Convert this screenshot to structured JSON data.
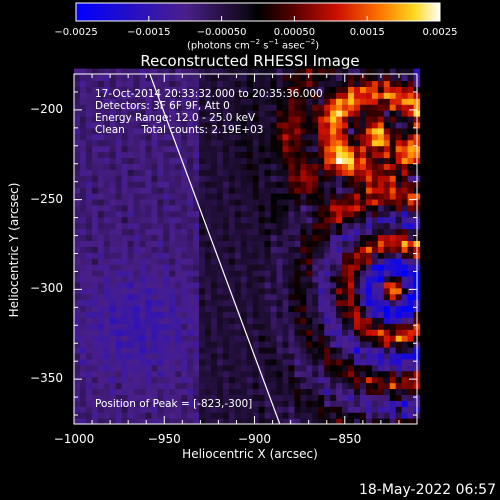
{
  "colorbar": {
    "tick_labels": [
      "−0.0025",
      "−0.0015",
      "−0.00050",
      "0.00050",
      "0.0015",
      "0.0025"
    ],
    "tick_values": [
      -0.0025,
      -0.0015,
      -0.0005,
      0.0005,
      0.0015,
      0.0025
    ],
    "unit_prefix": "(photons cm",
    "unit_sup1": "−2",
    "unit_mid1": " s",
    "unit_sup2": "−1",
    "unit_mid2": " asec",
    "unit_sup3": "−2",
    "unit_suffix": ")"
  },
  "chart_data": {
    "type": "heatmap",
    "title": "Reconstructed RHESSI Image",
    "xlabel": "Heliocentric X (arcsec)",
    "ylabel": "Heliocentric Y (arcsec)",
    "xlim": [
      -1000,
      -810
    ],
    "ylim": [
      -375,
      -180
    ],
    "x_tick_values": [
      -1000,
      -950,
      -900,
      -850
    ],
    "x_tick_labels": [
      "−1000",
      "−950",
      "−900",
      "−850"
    ],
    "y_tick_values": [
      -200,
      -250,
      -300,
      -350
    ],
    "y_tick_labels": [
      "−200",
      "−250",
      "−300",
      "−350"
    ],
    "zlim": [
      -0.0025,
      0.0025
    ],
    "annotations": [
      "17-Oct-2014 20:33:32.000 to 20:35:36.000",
      "Detectors: 3F 6F 9F, Att 0",
      "Energy Range: 12.0 - 25.0 keV",
      "Clean     Total counts: 2.19E+03"
    ],
    "peak_label": "Position of Peak = [-823,-300]",
    "peak": [
      -823,
      -300
    ],
    "limb_line": [
      [
        -958,
        -180
      ],
      [
        -886,
        -375
      ]
    ],
    "colormap": "blue-purple-red-yellow-white"
  },
  "timestamp": "18-May-2022 06:57"
}
